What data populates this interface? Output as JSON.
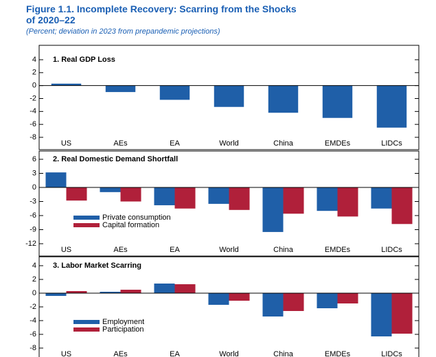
{
  "title": "Figure 1.1. Incomplete Recovery: Scarring from the Shocks of 2020–22",
  "subtitle": "(Percent; deviation in 2023 from prepandemic projections)",
  "chart_data": [
    {
      "type": "bar",
      "title": "1. Real GDP Loss",
      "categories": [
        "US",
        "AEs",
        "EA",
        "World",
        "China",
        "EMDEs",
        "LIDCs"
      ],
      "series": [
        {
          "name": null,
          "color": "#1f5fa8",
          "values": [
            0.3,
            -1.0,
            -2.2,
            -3.3,
            -4.2,
            -5.0,
            -6.5
          ]
        }
      ],
      "ylim": [
        -8,
        4
      ],
      "yticks": [
        -8,
        -6,
        -4,
        -2,
        0,
        2,
        4
      ]
    },
    {
      "type": "bar",
      "title": "2. Real Domestic Demand Shortfall",
      "categories": [
        "US",
        "AEs",
        "EA",
        "World",
        "China",
        "EMDEs",
        "LIDCs"
      ],
      "series": [
        {
          "name": "Private consumption",
          "color": "#1f5fa8",
          "values": [
            3.2,
            -1.0,
            -3.8,
            -3.5,
            -9.5,
            -5.0,
            -4.5
          ]
        },
        {
          "name": "Capital formation",
          "color": "#b0203a",
          "values": [
            -2.8,
            -3.0,
            -4.5,
            -4.8,
            -5.6,
            -6.2,
            -7.8
          ]
        }
      ],
      "ylim": [
        -12,
        6
      ],
      "yticks": [
        -12,
        -9,
        -6,
        -3,
        0,
        3,
        6
      ],
      "legend": "lower left"
    },
    {
      "type": "bar",
      "title": "3. Labor Market Scarring",
      "categories": [
        "US",
        "AEs",
        "EA",
        "World",
        "China",
        "EMDEs",
        "LIDCs"
      ],
      "series": [
        {
          "name": "Employment",
          "color": "#1f5fa8",
          "values": [
            -0.4,
            0.2,
            1.4,
            -1.7,
            -3.4,
            -2.2,
            -6.3
          ]
        },
        {
          "name": "Participation",
          "color": "#b0203a",
          "values": [
            0.3,
            0.5,
            1.3,
            -1.1,
            -2.6,
            -1.5,
            -5.9
          ]
        }
      ],
      "ylim": [
        -8,
        4
      ],
      "yticks": [
        -8,
        -6,
        -4,
        -2,
        0,
        2,
        4
      ],
      "legend": "lower left"
    }
  ]
}
